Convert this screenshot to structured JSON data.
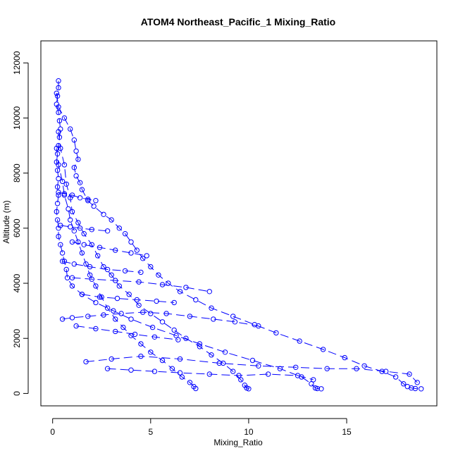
{
  "chart_data": {
    "type": "scatter",
    "title": "ATOM4 Northeast_Pacific_1 Mixing_Ratio",
    "xlabel": "Mixing_Ratio",
    "ylabel": "Altitude (m)",
    "xlim": [
      -0.6,
      19.6
    ],
    "ylim": [
      -450,
      12800
    ],
    "xticks": [
      0,
      5,
      10,
      15
    ],
    "yticks": [
      0,
      2000,
      4000,
      6000,
      8000,
      10000,
      12000
    ],
    "grid": false,
    "legend": "none",
    "marker": "open-circle",
    "colors": {
      "series": "#0000ff",
      "axes": "#000000"
    },
    "series": [
      {
        "values": [
          [
            0.3,
            11350
          ],
          [
            0.3,
            11100
          ],
          [
            0.25,
            10800
          ],
          [
            0.2,
            10500
          ],
          [
            0.3,
            10200
          ],
          [
            0.35,
            9900
          ],
          [
            0.4,
            9600
          ],
          [
            0.35,
            9300
          ],
          [
            0.3,
            9000
          ],
          [
            0.25,
            8700
          ],
          [
            0.2,
            8400
          ],
          [
            0.25,
            8100
          ],
          [
            0.3,
            7800
          ],
          [
            0.25,
            7500
          ],
          [
            0.3,
            7200
          ],
          [
            0.25,
            6900
          ],
          [
            0.2,
            6600
          ],
          [
            0.25,
            6300
          ],
          [
            0.3,
            6000
          ],
          [
            0.3,
            5700
          ],
          [
            0.4,
            5400
          ],
          [
            0.5,
            5100
          ],
          [
            0.6,
            4800
          ],
          [
            0.7,
            4500
          ],
          [
            0.75,
            4200
          ],
          [
            1.0,
            3900
          ],
          [
            1.5,
            3600
          ],
          [
            2.2,
            3300
          ],
          [
            3.1,
            3000
          ],
          [
            4.0,
            2700
          ],
          [
            5.1,
            2400
          ],
          [
            6.3,
            2100
          ],
          [
            7.5,
            1800
          ],
          [
            8.8,
            1500
          ],
          [
            10.2,
            1200
          ],
          [
            11.6,
            900
          ],
          [
            12.7,
            600
          ],
          [
            13.2,
            350
          ],
          [
            13.4,
            200
          ],
          [
            13.5,
            180
          ],
          [
            13.7,
            170
          ]
        ]
      },
      {
        "values": [
          [
            0.2,
            10900
          ],
          [
            0.3,
            10400
          ],
          [
            0.6,
            10000
          ],
          [
            0.9,
            9600
          ],
          [
            1.1,
            9200
          ],
          [
            1.2,
            8800
          ],
          [
            1.3,
            8500
          ],
          [
            1.1,
            8200
          ],
          [
            1.2,
            7900
          ],
          [
            1.4,
            7650
          ],
          [
            1.5,
            7400
          ],
          [
            1.8,
            7000
          ],
          [
            2.1,
            6800
          ],
          [
            2.6,
            6500
          ],
          [
            3.0,
            6300
          ],
          [
            3.4,
            6000
          ],
          [
            3.7,
            5800
          ],
          [
            4.0,
            5500
          ],
          [
            4.3,
            5200
          ],
          [
            4.6,
            4900
          ],
          [
            5.0,
            4600
          ],
          [
            5.4,
            4300
          ],
          [
            5.9,
            4000
          ],
          [
            6.5,
            3700
          ],
          [
            7.3,
            3400
          ],
          [
            8.1,
            3100
          ],
          [
            9.2,
            2800
          ],
          [
            10.3,
            2500
          ],
          [
            11.4,
            2200
          ],
          [
            12.6,
            1900
          ],
          [
            13.8,
            1600
          ],
          [
            14.9,
            1300
          ],
          [
            15.9,
            1000
          ],
          [
            16.8,
            800
          ],
          [
            17.5,
            600
          ],
          [
            17.9,
            350
          ],
          [
            18.1,
            250
          ],
          [
            18.3,
            200
          ],
          [
            18.5,
            180
          ],
          [
            18.8,
            170
          ]
        ]
      },
      {
        "values": [
          [
            0.3,
            9500
          ],
          [
            0.4,
            8900
          ],
          [
            0.6,
            8300
          ],
          [
            0.7,
            7600
          ],
          [
            0.9,
            7100
          ],
          [
            1.0,
            6600
          ],
          [
            1.3,
            6200
          ],
          [
            1.6,
            5800
          ],
          [
            2.0,
            5400
          ],
          [
            2.3,
            5000
          ],
          [
            2.6,
            4600
          ],
          [
            3.0,
            4300
          ],
          [
            3.4,
            3900
          ],
          [
            3.9,
            3600
          ],
          [
            4.4,
            3200
          ],
          [
            5.0,
            2900
          ],
          [
            5.6,
            2600
          ],
          [
            6.2,
            2300
          ],
          [
            6.8,
            2000
          ],
          [
            7.5,
            1700
          ],
          [
            8.1,
            1400
          ],
          [
            8.7,
            1100
          ],
          [
            9.2,
            800
          ],
          [
            9.6,
            500
          ],
          [
            9.8,
            300
          ],
          [
            9.9,
            200
          ],
          [
            10.0,
            170
          ]
        ]
      },
      {
        "values": [
          [
            0.2,
            8900
          ],
          [
            0.3,
            8300
          ],
          [
            0.5,
            7700
          ],
          [
            0.6,
            7200
          ],
          [
            0.8,
            6700
          ],
          [
            0.9,
            6300
          ],
          [
            1.1,
            5900
          ],
          [
            1.3,
            5500
          ],
          [
            1.5,
            5100
          ],
          [
            1.7,
            4700
          ],
          [
            1.9,
            4300
          ],
          [
            2.2,
            3900
          ],
          [
            2.5,
            3500
          ],
          [
            2.8,
            3100
          ],
          [
            3.2,
            2700
          ],
          [
            3.6,
            2400
          ],
          [
            4.0,
            2100
          ],
          [
            4.5,
            1800
          ],
          [
            5.0,
            1500
          ],
          [
            5.6,
            1200
          ],
          [
            6.1,
            900
          ],
          [
            6.6,
            600
          ],
          [
            7.0,
            400
          ],
          [
            7.2,
            250
          ],
          [
            7.3,
            180
          ]
        ]
      },
      {
        "values": [
          [
            1.7,
            1150
          ],
          [
            3.0,
            1250
          ],
          [
            4.5,
            1350
          ],
          [
            6.5,
            1250
          ],
          [
            8.5,
            1100
          ],
          [
            10.5,
            1000
          ],
          [
            12.4,
            950
          ],
          [
            14.0,
            900
          ],
          [
            15.5,
            900
          ],
          [
            17.0,
            800
          ],
          [
            18.2,
            700
          ],
          [
            18.6,
            400
          ]
        ]
      },
      {
        "values": [
          [
            2.8,
            900
          ],
          [
            4.0,
            850
          ],
          [
            5.2,
            800
          ],
          [
            6.5,
            750
          ],
          [
            8.0,
            700
          ],
          [
            9.5,
            650
          ],
          [
            11.0,
            700
          ],
          [
            12.5,
            650
          ],
          [
            13.3,
            500
          ]
        ]
      },
      {
        "values": [
          [
            0.5,
            2700
          ],
          [
            1.0,
            2750
          ],
          [
            1.8,
            2800
          ],
          [
            2.6,
            2850
          ],
          [
            3.5,
            2900
          ],
          [
            4.6,
            2950
          ],
          [
            5.8,
            2900
          ],
          [
            7.0,
            2800
          ],
          [
            8.2,
            2700
          ],
          [
            9.3,
            2600
          ],
          [
            10.5,
            2450
          ]
        ]
      },
      {
        "values": [
          [
            1.0,
            4200
          ],
          [
            2.0,
            4150
          ],
          [
            3.2,
            4100
          ],
          [
            4.4,
            4050
          ],
          [
            5.6,
            3950
          ],
          [
            6.8,
            3850
          ],
          [
            8.0,
            3700
          ]
        ]
      },
      {
        "values": [
          [
            1.0,
            5500
          ],
          [
            1.6,
            5400
          ],
          [
            2.4,
            5300
          ],
          [
            3.2,
            5200
          ],
          [
            4.0,
            5100
          ],
          [
            4.8,
            5000
          ]
        ]
      },
      {
        "values": [
          [
            1.2,
            2450
          ],
          [
            2.2,
            2350
          ],
          [
            3.2,
            2250
          ],
          [
            4.2,
            2150
          ],
          [
            5.2,
            2050
          ],
          [
            6.4,
            1950
          ]
        ]
      },
      {
        "values": [
          [
            1.5,
            3600
          ],
          [
            2.4,
            3500
          ],
          [
            3.3,
            3450
          ],
          [
            4.3,
            3400
          ],
          [
            5.3,
            3350
          ],
          [
            6.2,
            3300
          ]
        ]
      },
      {
        "values": [
          [
            0.5,
            4800
          ],
          [
            1.1,
            4700
          ],
          [
            1.9,
            4600
          ],
          [
            2.8,
            4500
          ],
          [
            3.7,
            4450
          ],
          [
            4.5,
            4400
          ]
        ]
      },
      {
        "values": [
          [
            0.4,
            6100
          ],
          [
            0.9,
            6050
          ],
          [
            1.4,
            6000
          ],
          [
            2.0,
            5950
          ],
          [
            2.8,
            5900
          ]
        ]
      },
      {
        "values": [
          [
            0.3,
            7300
          ],
          [
            0.6,
            7250
          ],
          [
            1.0,
            7200
          ],
          [
            1.4,
            7100
          ],
          [
            1.8,
            7050
          ],
          [
            2.2,
            7000
          ]
        ]
      }
    ]
  }
}
